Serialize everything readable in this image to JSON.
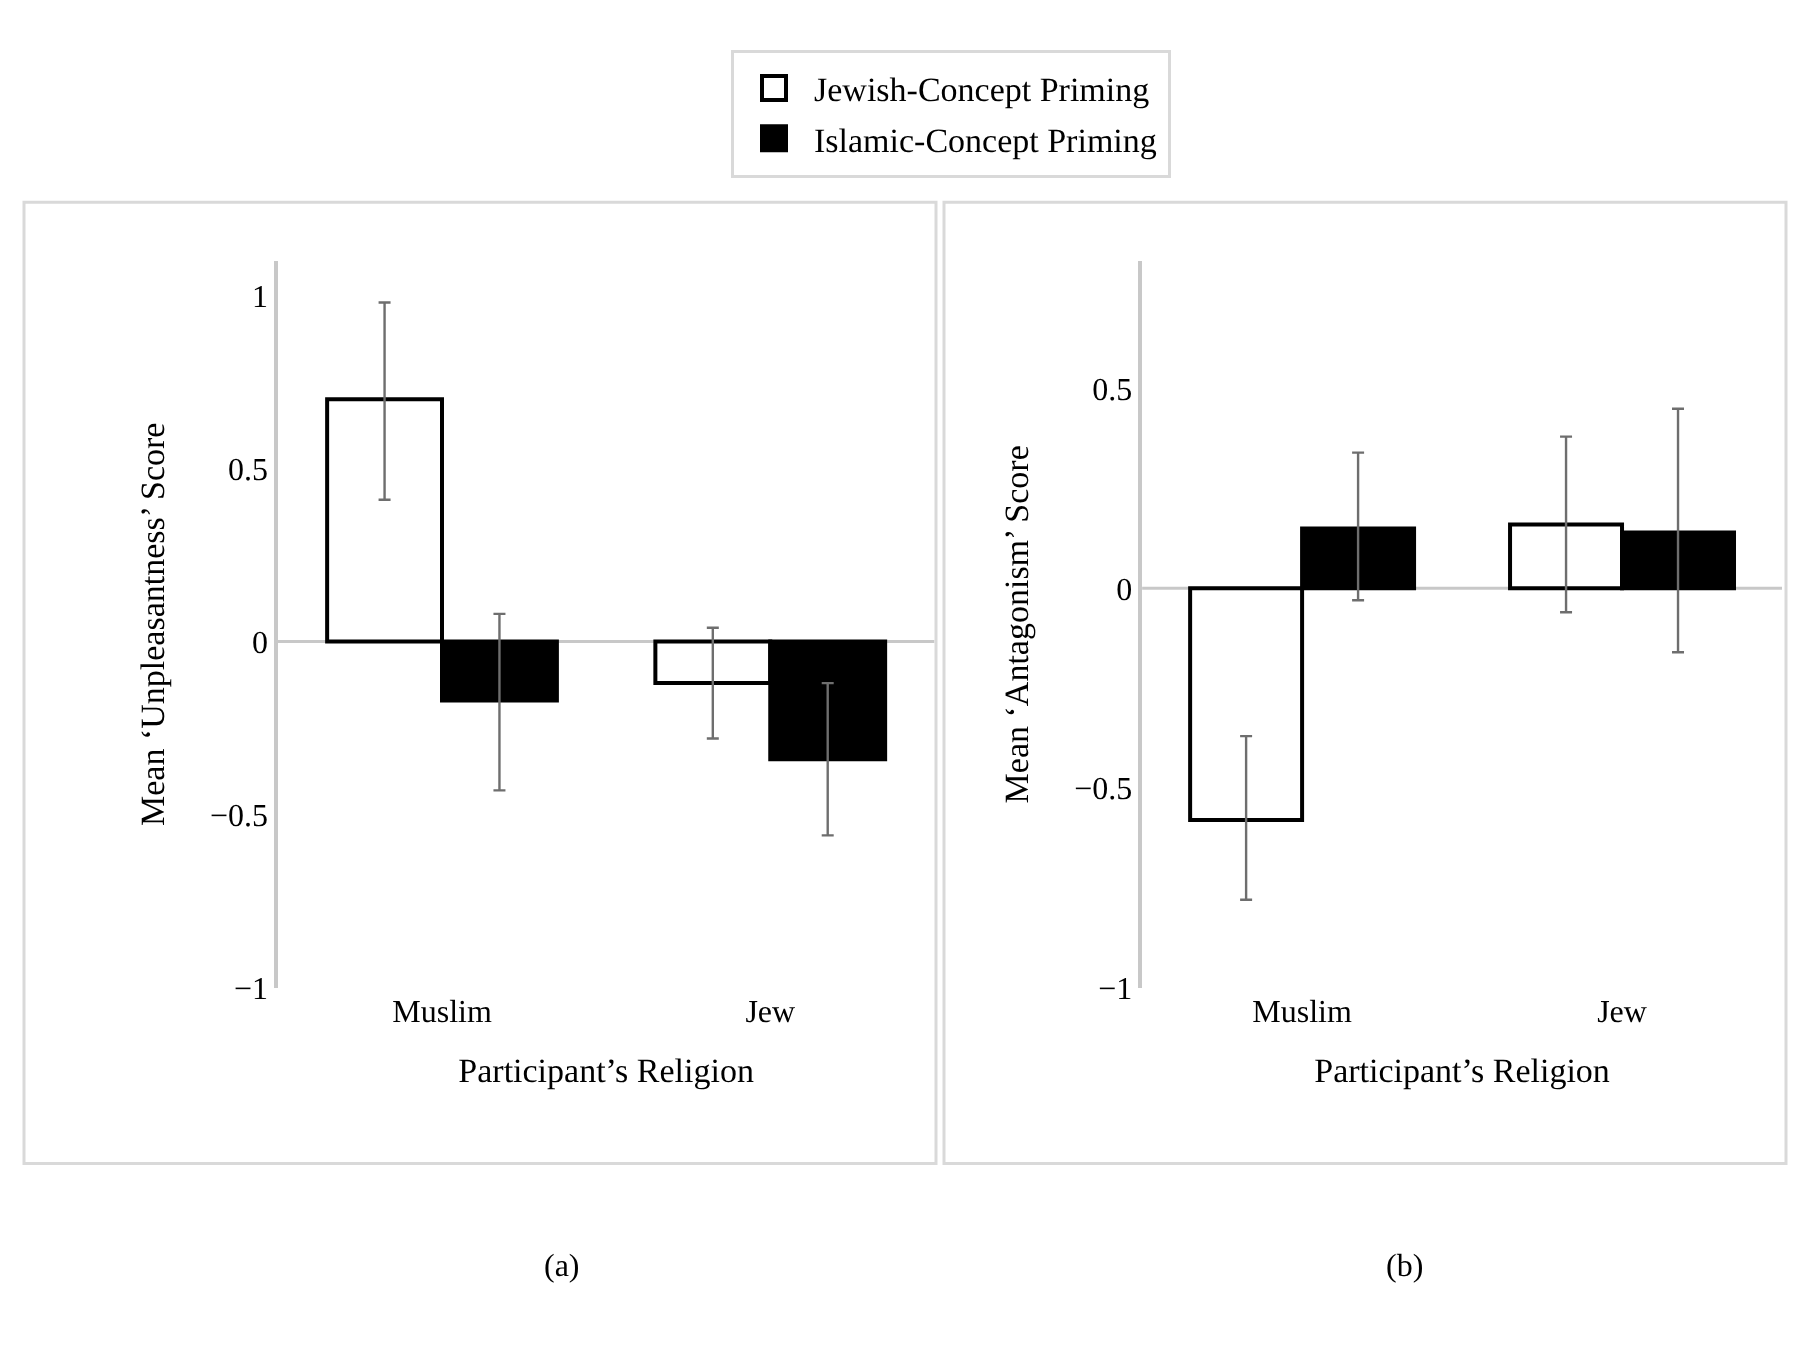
{
  "chart_data": [
    {
      "type": "bar",
      "categories": [
        "Muslim",
        "Jew"
      ],
      "xlabel": "Participant’s Religion",
      "ylabel": "Mean ‘Unpleasantness’ Score",
      "ylim": [
        -1,
        1.1
      ],
      "grid": false,
      "yticks": [
        -1,
        -0.5,
        0,
        0.5,
        1
      ],
      "ref_lines": [
        {
          "axis": "y",
          "value": 0,
          "color": "#c8c8c8"
        }
      ],
      "legend": "top",
      "annotations": [
        "(a)"
      ],
      "series": [
        {
          "name": "Jewish-Concept Priming",
          "color": "#ffffff",
          "values": [
            0.7,
            -0.12
          ],
          "errors": [
            [
              0.41,
              0.98
            ],
            [
              -0.28,
              0.04
            ]
          ]
        },
        {
          "name": "Islamic-Concept Priming",
          "color": "#000000",
          "values": [
            -0.17,
            -0.34
          ],
          "errors": [
            [
              -0.43,
              0.08
            ],
            [
              -0.56,
              -0.12
            ]
          ]
        }
      ]
    },
    {
      "type": "bar",
      "categories": [
        "Muslim",
        "Jew"
      ],
      "xlabel": "Participant’s Religion",
      "ylabel": "Mean ‘Antagonism’ Score",
      "ylim": [
        -1,
        0.82
      ],
      "grid": false,
      "yticks": [
        -1,
        -0.5,
        0,
        0.5
      ],
      "ref_lines": [
        {
          "axis": "y",
          "value": 0,
          "color": "#c8c8c8"
        }
      ],
      "legend": false,
      "annotations": [
        "(b)"
      ],
      "series": [
        {
          "color": "#ffffff",
          "values": [
            -0.58,
            0.16
          ],
          "errors": [
            [
              -0.78,
              -0.37
            ],
            [
              -0.06,
              0.38
            ]
          ]
        },
        {
          "color": "#000000",
          "values": [
            0.15,
            0.14
          ],
          "errors": [
            [
              -0.03,
              0.34
            ],
            [
              -0.16,
              0.45
            ]
          ]
        }
      ]
    }
  ]
}
